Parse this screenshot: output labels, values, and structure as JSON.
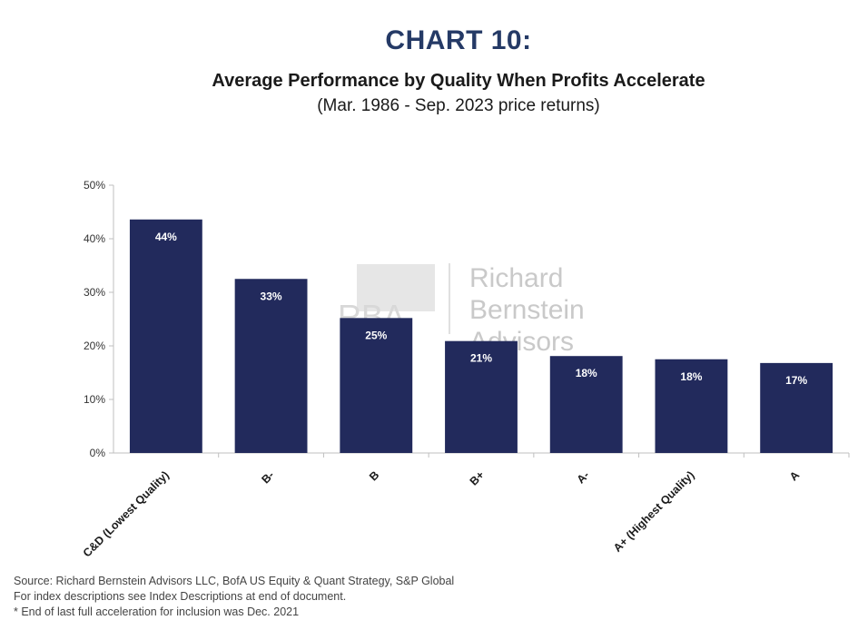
{
  "header": {
    "chart_number": "CHART 10:",
    "title": "Average Performance by Quality When Profits Accelerate",
    "subtitle": "(Mar. 1986 - Sep. 2023 price returns)"
  },
  "watermark": {
    "monogram": "RBA",
    "lines": [
      "Richard",
      "Bernstein",
      "Advisors"
    ]
  },
  "chart_data": {
    "type": "bar",
    "title": "Average Performance by Quality When Profits Accelerate",
    "subtitle": "(Mar. 1986 - Sep. 2023 price returns)",
    "categories": [
      "C&D (Lowest Quality)",
      "B-",
      "B",
      "B+",
      "A-",
      "A+ (Highest Quality)",
      "A"
    ],
    "values": [
      43.6,
      32.5,
      25.2,
      20.9,
      18.1,
      17.5,
      16.8
    ],
    "data_labels": [
      "44%",
      "33%",
      "25%",
      "21%",
      "18%",
      "18%",
      "17%"
    ],
    "ylim": [
      0,
      50
    ],
    "yticks": [
      0,
      10,
      20,
      30,
      40,
      50
    ],
    "ytick_labels": [
      "0%",
      "10%",
      "20%",
      "30%",
      "40%",
      "50%"
    ],
    "xlabel": "",
    "ylabel": "",
    "grid": false,
    "legend": "none",
    "bar_color": "#222a5c"
  },
  "footnotes": [
    "Source: Richard Bernstein Advisors LLC, BofA US Equity & Quant Strategy, S&P Global",
    "For index descriptions see Index Descriptions at end of document.",
    "* End of last full acceleration for inclusion was Dec. 2021"
  ]
}
